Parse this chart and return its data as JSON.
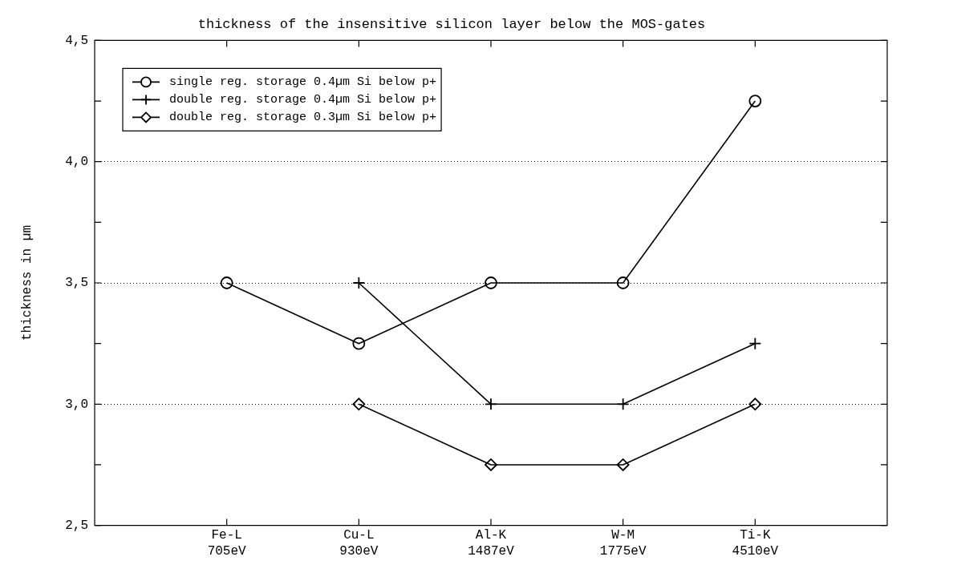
{
  "chart_data": {
    "type": "line",
    "title": "thickness of the insensitive silicon layer below the MOS-gates",
    "ylabel": "thickness in µm",
    "categories": [
      "Fe-L\n705eV",
      "Cu-L\n930eV",
      "Al-K\n1487eV",
      "W-M\n1775eV",
      "Ti-K\n4510eV"
    ],
    "series": [
      {
        "name": "single reg. storage 0.4µm Si below p+",
        "color": "#000000",
        "marker": "circle",
        "values": [
          3.5,
          3.25,
          3.5,
          3.5,
          4.25
        ]
      },
      {
        "name": "double reg. storage 0.4µm Si below p+",
        "color": "#000000",
        "marker": "cross",
        "values": [
          null,
          3.5,
          3.0,
          3.0,
          3.25
        ]
      },
      {
        "name": "double reg. storage 0.3µm Si below p+",
        "color": "#000000",
        "marker": "diamond",
        "values": [
          null,
          3.0,
          2.75,
          2.75,
          3.0
        ]
      }
    ],
    "ylim": [
      2.5,
      4.5
    ],
    "yticks": [
      {
        "value": 2.5,
        "label": "2,5"
      },
      {
        "value": 2.75,
        "label": null
      },
      {
        "value": 3.0,
        "label": "3,0"
      },
      {
        "value": 3.25,
        "label": null
      },
      {
        "value": 3.5,
        "label": "3,5"
      },
      {
        "value": 3.75,
        "label": null
      },
      {
        "value": 4.0,
        "label": "4,0"
      },
      {
        "value": 4.25,
        "label": null
      },
      {
        "value": 4.5,
        "label": "4,5"
      }
    ],
    "grid": "y",
    "legend": "top left",
    "line_style": "solid"
  }
}
